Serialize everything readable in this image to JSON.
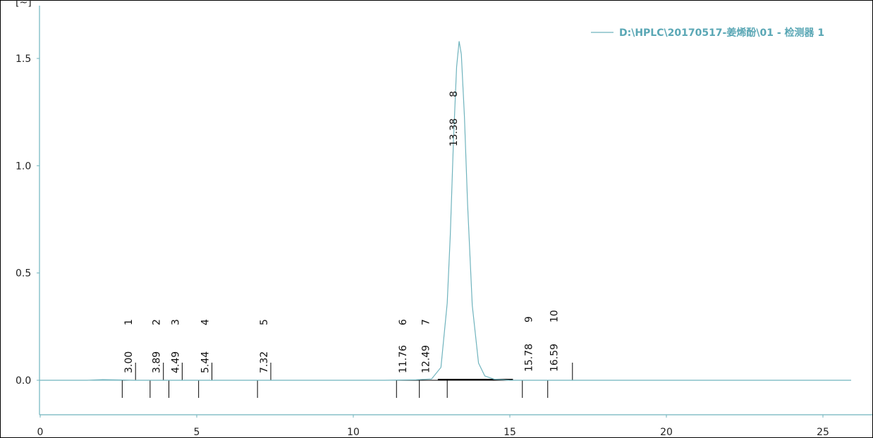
{
  "chart_data": {
    "type": "line",
    "title": "",
    "xlabel": "",
    "ylabel": "",
    "xlim": [
      0,
      26.5
    ],
    "ylim": [
      -0.16,
      1.75
    ],
    "x_ticks": [
      "0",
      "5",
      "10",
      "15",
      "20",
      "25"
    ],
    "y_ticks": [
      "0.0",
      "0.5",
      "1.0",
      "1.5"
    ],
    "y_unit_fragment": "[~]",
    "grid": false,
    "legend_position": "top-right",
    "colors": {
      "trace": "#6fb3bd",
      "axis": "#6fb3bd",
      "markers": "#000000"
    },
    "series": [
      {
        "name": "D:\\HPLC\\20170517-姜烯酚\\01 - 检测器 1",
        "x": [
          0.0,
          1.5,
          2.0,
          3.0,
          5.0,
          8.0,
          11.0,
          12.0,
          12.5,
          12.8,
          13.0,
          13.1,
          13.2,
          13.3,
          13.38,
          13.45,
          13.55,
          13.65,
          13.8,
          14.0,
          14.2,
          14.5,
          15.0,
          16.0,
          20.0,
          25.9
        ],
        "y": [
          0.0,
          0.0,
          0.003,
          0.0,
          0.0,
          0.0,
          0.0,
          0.002,
          0.006,
          0.06,
          0.36,
          0.68,
          1.12,
          1.46,
          1.58,
          1.52,
          1.23,
          0.82,
          0.35,
          0.08,
          0.02,
          0.005,
          0.0,
          0.0,
          0.0,
          0.0
        ]
      }
    ],
    "peaks": [
      {
        "number": "1",
        "rt": "3.00"
      },
      {
        "number": "2",
        "rt": "3.89"
      },
      {
        "number": "3",
        "rt": "4.49"
      },
      {
        "number": "4",
        "rt": "5.44"
      },
      {
        "number": "5",
        "rt": "7.32"
      },
      {
        "number": "6",
        "rt": "11.76"
      },
      {
        "number": "7",
        "rt": "12.49"
      },
      {
        "number": "8",
        "rt": "13.38"
      },
      {
        "number": "9",
        "rt": "15.78"
      },
      {
        "number": "10",
        "rt": "16.59"
      }
    ]
  }
}
